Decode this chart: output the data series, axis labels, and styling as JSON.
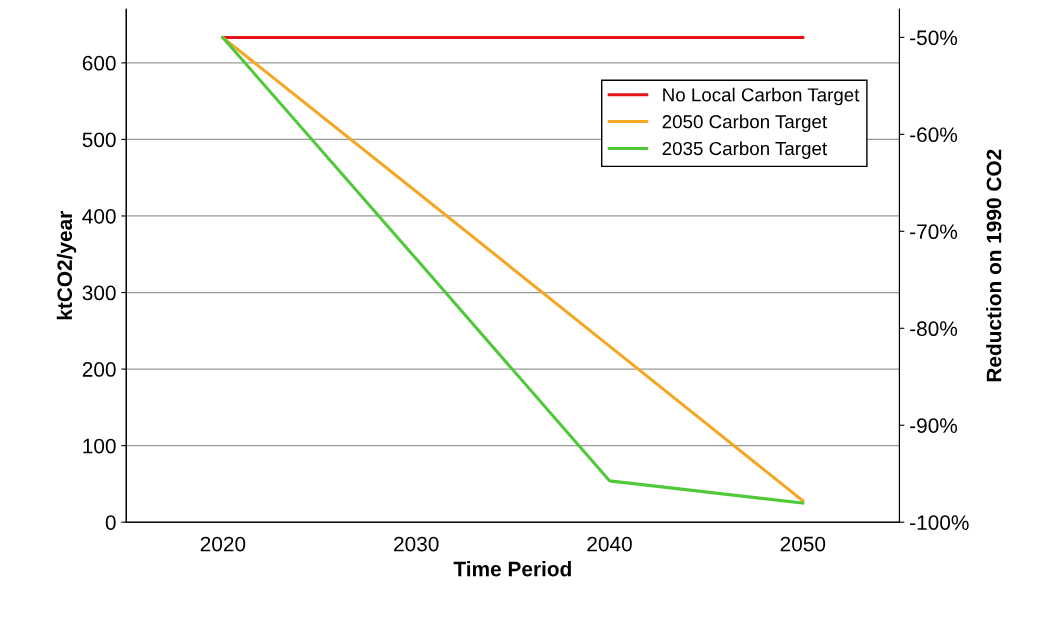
{
  "chart_data": {
    "type": "line",
    "xlabel": "Time Period",
    "ylabel": "ktCO2/year",
    "y2label": "Reduction on 1990 CO2",
    "categories": [
      "2020",
      "2030",
      "2040",
      "2050"
    ],
    "series": [
      {
        "name": "No Local Carbon Target",
        "color": "#e8141b",
        "values": [
          633,
          633,
          633,
          633
        ]
      },
      {
        "name": "2050 Carbon Target",
        "color": "#f5a623",
        "values": [
          633,
          432,
          230,
          28
        ]
      },
      {
        "name": "2035 Carbon Target",
        "color": "#4fc93a",
        "values": [
          633,
          344,
          54,
          25
        ]
      }
    ],
    "ylim": [
      0,
      670
    ],
    "yticks": [
      0,
      100,
      200,
      300,
      400,
      500,
      600
    ],
    "y2lim": [
      -100,
      -47.1
    ],
    "y2ticks": [
      {
        "value": -50,
        "label": "-50%"
      },
      {
        "value": -60,
        "label": "-60%"
      },
      {
        "value": -70,
        "label": "-70%"
      },
      {
        "value": -80,
        "label": "-80%"
      },
      {
        "value": -90,
        "label": "-90%"
      },
      {
        "value": -100,
        "label": "-100%"
      }
    ],
    "grid": "y",
    "legend": "top right",
    "marker": "none",
    "line_style": "solid"
  }
}
